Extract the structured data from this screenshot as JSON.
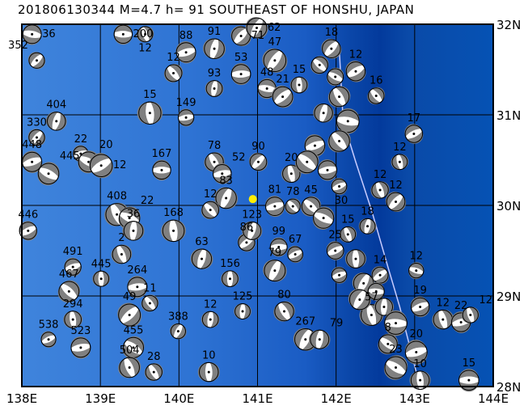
{
  "title": "201806130344 M=4.7 h= 91 SOUTHEAST OF HONSHU, JAPAN",
  "map": {
    "lon_range": [
      138,
      144
    ],
    "lat_range": [
      28,
      32
    ],
    "lon_ticks": [
      "138E",
      "139E",
      "140E",
      "141E",
      "142E",
      "143E",
      "144E"
    ],
    "lat_ticks": [
      "28N",
      "29N",
      "30N",
      "31N",
      "32N"
    ],
    "grid": true,
    "colors": {
      "shallow": "#4a8be0",
      "mid": "#1f63c8",
      "trench": "#033a9c",
      "east": "#0652b4",
      "ball_gray": "#808080",
      "ball_white": "#ffffff",
      "epicenter": "#ffee00",
      "trench_line": "#c8ccff"
    }
  },
  "epicenter": {
    "lon": 140.94,
    "lat": 30.07
  },
  "trench_line": [
    [
      142.04,
      31.73
    ],
    [
      142.09,
      30.93
    ],
    [
      142.25,
      30.48
    ],
    [
      142.45,
      29.95
    ],
    [
      142.66,
      29.32
    ],
    [
      142.81,
      28.88
    ],
    [
      143.02,
      28.16
    ],
    [
      143.1,
      28.0
    ]
  ],
  "events": [
    {
      "lon": 138.13,
      "lat": 31.89,
      "label": "36"
    },
    {
      "lon": 138.19,
      "lat": 31.6,
      "label": "352"
    },
    {
      "lon": 139.29,
      "lat": 31.89,
      "label": "200"
    },
    {
      "lon": 139.57,
      "lat": 31.89,
      "label": "12"
    },
    {
      "lon": 140.09,
      "lat": 31.69,
      "label": "88"
    },
    {
      "lon": 139.93,
      "lat": 31.46,
      "label": "12"
    },
    {
      "lon": 140.45,
      "lat": 31.73,
      "label": "91"
    },
    {
      "lon": 140.79,
      "lat": 31.87,
      "label": "71"
    },
    {
      "lon": 140.99,
      "lat": 31.96,
      "label": "62"
    },
    {
      "lon": 140.79,
      "lat": 31.45,
      "label": "53"
    },
    {
      "lon": 140.45,
      "lat": 31.29,
      "label": "93"
    },
    {
      "lon": 139.63,
      "lat": 31.02,
      "label": "15"
    },
    {
      "lon": 140.09,
      "lat": 30.97,
      "label": "149"
    },
    {
      "lon": 141.22,
      "lat": 31.6,
      "label": "47"
    },
    {
      "lon": 141.12,
      "lat": 31.29,
      "label": "48"
    },
    {
      "lon": 141.32,
      "lat": 31.2,
      "label": "21"
    },
    {
      "lon": 141.53,
      "lat": 31.33,
      "label": "15"
    },
    {
      "lon": 141.94,
      "lat": 31.73,
      "label": "18"
    },
    {
      "lon": 142.25,
      "lat": 31.48,
      "label": "12"
    },
    {
      "lon": 142.51,
      "lat": 31.21,
      "label": "16"
    },
    {
      "lon": 142.99,
      "lat": 30.79,
      "label": "17"
    },
    {
      "lon": 142.81,
      "lat": 30.48,
      "label": "12"
    },
    {
      "lon": 142.56,
      "lat": 30.17,
      "label": "12"
    },
    {
      "lon": 142.76,
      "lat": 30.04,
      "label": "12"
    },
    {
      "lon": 138.13,
      "lat": 30.48,
      "label": "448"
    },
    {
      "lon": 138.34,
      "lat": 30.35,
      "label": "445"
    },
    {
      "lon": 138.19,
      "lat": 30.75,
      "label": "330"
    },
    {
      "lon": 138.44,
      "lat": 30.93,
      "label": "404"
    },
    {
      "lon": 138.75,
      "lat": 30.57,
      "label": "22"
    },
    {
      "lon": 138.85,
      "lat": 30.48,
      "label": "20"
    },
    {
      "lon": 139.01,
      "lat": 30.44,
      "label": "12"
    },
    {
      "lon": 139.78,
      "lat": 30.39,
      "label": "167"
    },
    {
      "lon": 140.45,
      "lat": 30.48,
      "label": "78"
    },
    {
      "lon": 140.55,
      "lat": 30.35,
      "label": "52"
    },
    {
      "lon": 141.01,
      "lat": 30.48,
      "label": "90"
    },
    {
      "lon": 140.6,
      "lat": 30.08,
      "label": "83"
    },
    {
      "lon": 140.4,
      "lat": 29.95,
      "label": "12"
    },
    {
      "lon": 139.93,
      "lat": 29.72,
      "label": "168"
    },
    {
      "lon": 139.21,
      "lat": 29.9,
      "label": "408"
    },
    {
      "lon": 139.37,
      "lat": 29.86,
      "label": "22"
    },
    {
      "lon": 139.42,
      "lat": 29.72,
      "label": "36"
    },
    {
      "lon": 138.08,
      "lat": 29.72,
      "label": "446"
    },
    {
      "lon": 138.65,
      "lat": 29.32,
      "label": "491"
    },
    {
      "lon": 138.6,
      "lat": 29.05,
      "label": "467"
    },
    {
      "lon": 138.65,
      "lat": 28.74,
      "label": "294"
    },
    {
      "lon": 138.34,
      "lat": 28.52,
      "label": "538"
    },
    {
      "lon": 138.75,
      "lat": 28.43,
      "label": "523"
    },
    {
      "lon": 139.01,
      "lat": 29.19,
      "label": "445"
    },
    {
      "lon": 139.27,
      "lat": 29.46,
      "label": "2"
    },
    {
      "lon": 139.47,
      "lat": 29.1,
      "label": "264"
    },
    {
      "lon": 139.63,
      "lat": 28.92,
      "label": "11"
    },
    {
      "lon": 139.37,
      "lat": 28.79,
      "label": "49"
    },
    {
      "lon": 139.99,
      "lat": 28.61,
      "label": "388"
    },
    {
      "lon": 139.42,
      "lat": 28.43,
      "label": "455"
    },
    {
      "lon": 139.37,
      "lat": 28.21,
      "label": "504"
    },
    {
      "lon": 139.68,
      "lat": 28.16,
      "label": "28"
    },
    {
      "lon": 140.4,
      "lat": 28.74,
      "label": "12"
    },
    {
      "lon": 140.81,
      "lat": 28.83,
      "label": "125"
    },
    {
      "lon": 141.34,
      "lat": 28.83,
      "label": "80"
    },
    {
      "lon": 141.61,
      "lat": 28.52,
      "label": "267"
    },
    {
      "lon": 141.79,
      "lat": 28.52,
      "label": "79"
    },
    {
      "lon": 141.27,
      "lat": 29.54,
      "label": "99"
    },
    {
      "lon": 141.48,
      "lat": 29.46,
      "label": "67"
    },
    {
      "lon": 140.86,
      "lat": 29.59,
      "label": "86"
    },
    {
      "lon": 141.22,
      "lat": 29.28,
      "label": "79"
    },
    {
      "lon": 140.65,
      "lat": 29.19,
      "label": "156"
    },
    {
      "lon": 140.29,
      "lat": 29.41,
      "label": "63"
    },
    {
      "lon": 140.93,
      "lat": 29.72,
      "label": "123"
    },
    {
      "lon": 141.22,
      "lat": 29.99,
      "label": "81"
    },
    {
      "lon": 141.45,
      "lat": 29.99,
      "label": "78"
    },
    {
      "lon": 141.68,
      "lat": 29.99,
      "label": "45"
    },
    {
      "lon": 141.43,
      "lat": 30.35,
      "label": "20"
    },
    {
      "lon": 141.84,
      "lat": 29.86,
      "label": "30"
    },
    {
      "lon": 141.99,
      "lat": 29.5,
      "label": "25"
    },
    {
      "lon": 142.15,
      "lat": 29.68,
      "label": "15"
    },
    {
      "lon": 142.4,
      "lat": 29.77,
      "label": "18"
    },
    {
      "lon": 142.56,
      "lat": 29.23,
      "label": "14"
    },
    {
      "lon": 143.02,
      "lat": 29.28,
      "label": "12"
    },
    {
      "lon": 143.07,
      "lat": 28.88,
      "label": "19"
    },
    {
      "lon": 143.36,
      "lat": 28.74,
      "label": "12"
    },
    {
      "lon": 143.59,
      "lat": 28.71,
      "label": "22"
    },
    {
      "lon": 143.71,
      "lat": 28.79,
      "label": "12"
    },
    {
      "lon": 143.69,
      "lat": 28.07,
      "label": "15"
    },
    {
      "lon": 142.76,
      "lat": 28.21,
      "label": "23"
    },
    {
      "lon": 143.07,
      "lat": 28.07,
      "label": "10"
    },
    {
      "lon": 143.02,
      "lat": 28.38,
      "label": "20"
    },
    {
      "lon": 142.66,
      "lat": 28.47,
      "label": "8"
    },
    {
      "lon": 142.45,
      "lat": 28.79,
      "label": "57"
    },
    {
      "lon": 140.38,
      "lat": 28.16,
      "label": "10"
    },
    {
      "lon": 142.04,
      "lat": 31.2,
      "label": ""
    },
    {
      "lon": 141.84,
      "lat": 31.02,
      "label": ""
    },
    {
      "lon": 142.15,
      "lat": 30.93,
      "label": ""
    },
    {
      "lon": 141.73,
      "lat": 30.66,
      "label": ""
    },
    {
      "lon": 142.04,
      "lat": 30.71,
      "label": ""
    },
    {
      "lon": 141.89,
      "lat": 30.39,
      "label": ""
    },
    {
      "lon": 141.63,
      "lat": 30.48,
      "label": ""
    },
    {
      "lon": 142.04,
      "lat": 30.21,
      "label": ""
    },
    {
      "lon": 142.25,
      "lat": 29.41,
      "label": ""
    },
    {
      "lon": 142.35,
      "lat": 29.14,
      "label": ""
    },
    {
      "lon": 142.3,
      "lat": 28.96,
      "label": ""
    },
    {
      "lon": 142.51,
      "lat": 29.05,
      "label": ""
    },
    {
      "lon": 142.61,
      "lat": 28.88,
      "label": ""
    },
    {
      "lon": 142.76,
      "lat": 28.7,
      "label": ""
    },
    {
      "lon": 142.04,
      "lat": 29.23,
      "label": ""
    },
    {
      "lon": 141.99,
      "lat": 31.42,
      "label": ""
    },
    {
      "lon": 141.79,
      "lat": 31.55,
      "label": ""
    }
  ]
}
